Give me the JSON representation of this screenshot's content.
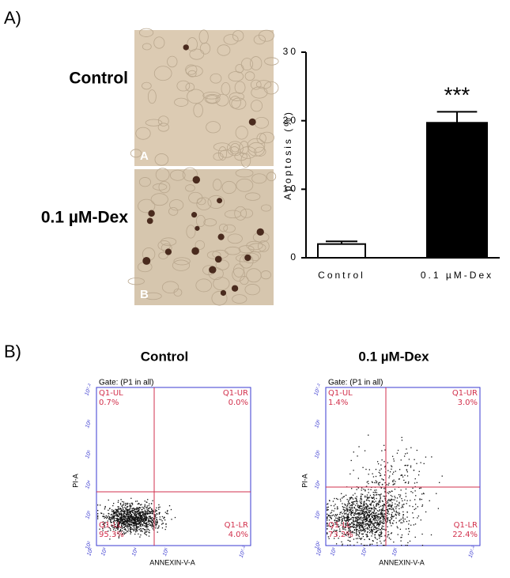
{
  "panel_a": {
    "label": "A)",
    "rows": [
      {
        "label": "Control",
        "image_letter": "A"
      },
      {
        "label": "0.1 µM-Dex",
        "image_letter": "B"
      }
    ]
  },
  "chart_data": {
    "type": "bar",
    "y_label": "Apoptosis (%)",
    "categories": [
      "Control",
      "0.1 µM-Dex"
    ],
    "values": [
      2,
      19.7
    ],
    "errors": [
      0.4,
      1.6
    ],
    "colors": [
      "#ffffff",
      "#000000"
    ],
    "annotation": "***",
    "ylim": [
      0,
      30
    ],
    "yticks": [
      0,
      10,
      20,
      30
    ]
  },
  "panel_b": {
    "label": "B)",
    "plots": [
      {
        "title": "Control",
        "gate": "Gate: (P1 in all)",
        "y_label": "PI-A",
        "x_label": "ANNEXIN-V-A",
        "quadrants": {
          "UL": [
            "Q1-UL",
            "0.7%"
          ],
          "UR": [
            "Q1-UR",
            "0.0%"
          ],
          "LL": [
            "Q1-LL",
            "95.3%"
          ],
          "LR": [
            "Q1-LR",
            "4.0%"
          ]
        }
      },
      {
        "title": "0.1 µM-Dex",
        "gate": "Gate: (P1 in all)",
        "y_label": "PI-A",
        "x_label": "ANNEXIN-V-A",
        "quadrants": {
          "UL": [
            "Q1-UL",
            "1.4%"
          ],
          "UR": [
            "Q1-UR",
            "3.0%"
          ],
          "LL": [
            "Q1-LL",
            "73.2%"
          ],
          "LR": [
            "Q1-LR",
            "22.4%"
          ]
        }
      }
    ],
    "x_ticks": [
      "10²",
      "10³",
      "10⁴",
      "10⁵",
      "10⁷·²"
    ],
    "y_ticks": [
      "10²",
      "10³",
      "10⁴",
      "10⁵",
      "10⁶",
      "10⁷·²"
    ]
  }
}
